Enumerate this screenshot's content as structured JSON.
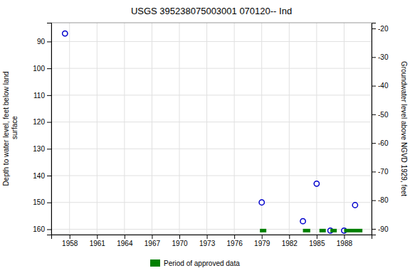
{
  "chart_data": {
    "type": "scatter",
    "title": "USGS 395238075003001 070120-- Ind",
    "ylabel": "Depth to water level, feet below land\n surface",
    "y2label": "Groundwater level above NGVD 1929, feet",
    "xlim": [
      1956.0,
      1991.0
    ],
    "xticks": [
      1958,
      1961,
      1964,
      1967,
      1970,
      1973,
      1976,
      1979,
      1982,
      1985,
      1988
    ],
    "ylim": [
      162,
      83
    ],
    "yticks": [
      90,
      100,
      110,
      120,
      130,
      140,
      150,
      160
    ],
    "y2lim": [
      -92,
      -18
    ],
    "y2ticks": [
      -20,
      -30,
      -40,
      -50,
      -60,
      -70,
      -80,
      -90
    ],
    "grid": true,
    "legend": "bottom",
    "series": [
      {
        "type": "scatter",
        "color": "#0000CC",
        "marker": "circle",
        "x": [
          1957.5,
          1979.0,
          1983.5,
          1985.0,
          1986.5,
          1988.0,
          1989.2
        ],
        "values": [
          87.0,
          150.0,
          157.0,
          143.0,
          160.5,
          160.5,
          151.0
        ]
      },
      {
        "name": "Period of approved data",
        "type": "segment",
        "color": "#008000",
        "x_start": [
          1978.8,
          1983.5,
          1985.3,
          1986.5,
          1988.0
        ],
        "x_end": [
          1979.5,
          1984.3,
          1986.0,
          1987.2,
          1990.0
        ],
        "values": [
          160.5,
          160.5,
          160.5,
          160.5,
          160.5
        ]
      }
    ]
  }
}
